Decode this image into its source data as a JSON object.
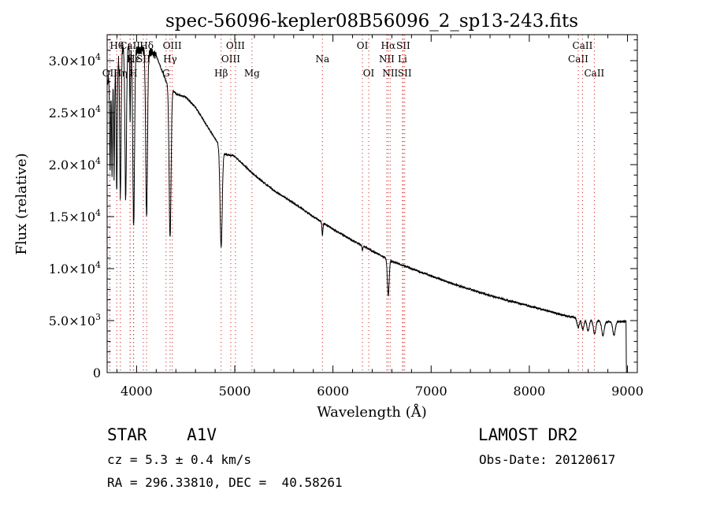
{
  "chart_data": {
    "type": "line",
    "title": "spec-56096-kepler08B56096_2_sp13-243.fits",
    "xlabel": "Wavelength (Å)",
    "ylabel": "Flux (relative)",
    "xlim": [
      3700,
      9100
    ],
    "ylim": [
      0,
      32500
    ],
    "x_ticks": [
      4000,
      5000,
      6000,
      7000,
      8000,
      9000
    ],
    "y_ticks": [
      {
        "value": 0,
        "mantissa": "0",
        "exp": ""
      },
      {
        "value": 5000,
        "mantissa": "5.0×10",
        "exp": "3"
      },
      {
        "value": 10000,
        "mantissa": "1.0×10",
        "exp": "4"
      },
      {
        "value": 15000,
        "mantissa": "1.5×10",
        "exp": "4"
      },
      {
        "value": 20000,
        "mantissa": "2.0×10",
        "exp": "4"
      },
      {
        "value": 25000,
        "mantissa": "2.5×10",
        "exp": "4"
      },
      {
        "value": 30000,
        "mantissa": "3.0×10",
        "exp": "4"
      }
    ],
    "grid": false,
    "continuum": {
      "x": [
        3700,
        3800,
        3900,
        4000,
        4100,
        4200,
        4300,
        4400,
        4500,
        4600,
        4700,
        4800,
        4900,
        5000,
        5200,
        5400,
        5600,
        5800,
        6000,
        6200,
        6400,
        6600,
        6800,
        7000,
        7200,
        7400,
        7600,
        7800,
        8000,
        8200,
        8400,
        8600,
        8800,
        8970
      ],
      "y": [
        28000,
        30500,
        31500,
        31000,
        31000,
        30500,
        28000,
        26800,
        26500,
        25500,
        24000,
        22500,
        21000,
        20800,
        19000,
        17500,
        16300,
        15000,
        13800,
        12700,
        11700,
        10700,
        10000,
        9300,
        8600,
        8000,
        7400,
        6900,
        6400,
        5900,
        5400,
        5100,
        4900,
        4900
      ]
    },
    "absorption_features": [
      {
        "center": 3730,
        "width": 5,
        "depth": 9000
      },
      {
        "center": 3750,
        "width": 5,
        "depth": 10000
      },
      {
        "center": 3771,
        "width": 5,
        "depth": 11000
      },
      {
        "center": 3798,
        "width": 6,
        "depth": 13000
      },
      {
        "center": 3835,
        "width": 7,
        "depth": 14000
      },
      {
        "center": 3889,
        "width": 8,
        "depth": 14500
      },
      {
        "center": 3934,
        "width": 4,
        "depth": 7000
      },
      {
        "center": 3970,
        "width": 9,
        "depth": 17000
      },
      {
        "center": 4102,
        "width": 9,
        "depth": 16000
      },
      {
        "center": 4341,
        "width": 10,
        "depth": 14500
      },
      {
        "center": 4861,
        "width": 11,
        "depth": 9500
      },
      {
        "center": 5893,
        "width": 5,
        "depth": 1200
      },
      {
        "center": 6300,
        "width": 4,
        "depth": 500
      },
      {
        "center": 6563,
        "width": 9,
        "depth": 3500
      },
      {
        "center": 8498,
        "width": 12,
        "depth": 900
      },
      {
        "center": 8545,
        "width": 12,
        "depth": 1000
      },
      {
        "center": 8598,
        "width": 12,
        "depth": 1100
      },
      {
        "center": 8665,
        "width": 13,
        "depth": 1300
      },
      {
        "center": 8750,
        "width": 13,
        "depth": 1400
      },
      {
        "center": 8863,
        "width": 13,
        "depth": 1300
      }
    ],
    "line_markers": [
      {
        "name": "OII",
        "wavelength": 3727,
        "row": 2
      },
      {
        "name": "Hθ",
        "wavelength": 3798,
        "row": 0
      },
      {
        "name": "Hη",
        "wavelength": 3835,
        "row": 2
      },
      {
        "name": "CaII",
        "wavelength": 3934,
        "row": 0
      },
      {
        "name": "K",
        "wavelength": 3934,
        "row": 1
      },
      {
        "name": "Hε",
        "wavelength": 3970,
        "row": 1
      },
      {
        "name": "H",
        "wavelength": 3968,
        "row": 2
      },
      {
        "name": "SII",
        "wavelength": 4069,
        "row": 1
      },
      {
        "name": "Hδ",
        "wavelength": 4102,
        "row": 0
      },
      {
        "name": "G",
        "wavelength": 4300,
        "row": 2
      },
      {
        "name": "Hγ",
        "wavelength": 4341,
        "row": 1
      },
      {
        "name": "OIII",
        "wavelength": 4363,
        "row": 0
      },
      {
        "name": "Hβ",
        "wavelength": 4861,
        "row": 2
      },
      {
        "name": "OIII",
        "wavelength": 4959,
        "row": 1
      },
      {
        "name": "OIII",
        "wavelength": 5007,
        "row": 0
      },
      {
        "name": "Mg",
        "wavelength": 5175,
        "row": 2
      },
      {
        "name": "Na",
        "wavelength": 5893,
        "row": 1
      },
      {
        "name": "OI",
        "wavelength": 6300,
        "row": 0
      },
      {
        "name": "OI",
        "wavelength": 6364,
        "row": 2
      },
      {
        "name": "NII",
        "wavelength": 6548,
        "row": 1
      },
      {
        "name": "Hα",
        "wavelength": 6563,
        "row": 0
      },
      {
        "name": "NII",
        "wavelength": 6583,
        "row": 2
      },
      {
        "name": "SII",
        "wavelength": 6716,
        "row": 0
      },
      {
        "name": "Li",
        "wavelength": 6708,
        "row": 1
      },
      {
        "name": "SII",
        "wavelength": 6731,
        "row": 2
      },
      {
        "name": "CaII",
        "wavelength": 8498,
        "row": 1
      },
      {
        "name": "CaII",
        "wavelength": 8542,
        "row": 0
      },
      {
        "name": "CaII",
        "wavelength": 8662,
        "row": 2
      }
    ]
  },
  "info": {
    "class_label": "STAR    A1V",
    "survey": "LAMOST DR2",
    "cz": "cz = 5.3 ± 0.4 km/s",
    "obs_date": "Obs-Date: 20120617",
    "coords": "RA = 296.33810, DEC =  40.58261"
  }
}
